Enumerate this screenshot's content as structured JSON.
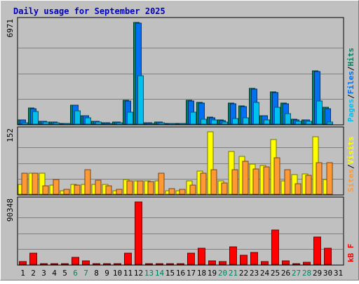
{
  "colors": {
    "frame_bg": "#C0C0C0",
    "title": "#0000C0",
    "pages": "#00C0F0",
    "files": "#0070F0",
    "hits": "#008060",
    "sites": "#FF9933",
    "visits": "#FFFF00",
    "kbytes": "#FF0000",
    "weekend": "#008060",
    "weekday": "#000000"
  },
  "chart_data": {
    "type": "bar",
    "title": "Daily usage for September 2025",
    "days": [
      "1",
      "2",
      "3",
      "4",
      "5",
      "6",
      "7",
      "8",
      "9",
      "10",
      "11",
      "12",
      "13",
      "14",
      "15",
      "16",
      "17",
      "18",
      "19",
      "20",
      "21",
      "22",
      "23",
      "24",
      "25",
      "26",
      "27",
      "28",
      "29",
      "30",
      "31"
    ],
    "weekend_days": [
      "6",
      "7",
      "13",
      "14",
      "20",
      "21",
      "27",
      "28"
    ],
    "panels": [
      {
        "id": "hits_panel",
        "max_label": "6971",
        "max": 6971,
        "legend": [
          {
            "label": "Pages",
            "color_key": "pages"
          },
          {
            "label": "Files",
            "color_key": "files"
          },
          {
            "label": "Hits",
            "color_key": "hits"
          }
        ],
        "series": [
          {
            "name": "Hits",
            "color_key": "hits",
            "values": [
              300,
              1100,
              200,
              150,
              50,
              1300,
              600,
              200,
              100,
              150,
              1650,
              6971,
              100,
              150,
              50,
              50,
              1650,
              1500,
              480,
              280,
              1450,
              1250,
              2450,
              600,
              2220,
              1450,
              330,
              300,
              3650,
              1130,
              0
            ]
          },
          {
            "name": "Files",
            "color_key": "files",
            "values": [
              280,
              1050,
              180,
              130,
              40,
              1280,
              570,
              180,
              80,
              130,
              1600,
              6900,
              80,
              130,
              30,
              30,
              1600,
              1450,
              450,
              250,
              1400,
              1200,
              2400,
              570,
              2170,
              1400,
              310,
              280,
              3600,
              1080,
              0
            ]
          },
          {
            "name": "Pages",
            "color_key": "pages",
            "values": [
              100,
              850,
              150,
              100,
              10,
              900,
              450,
              150,
              30,
              100,
              800,
              3300,
              50,
              80,
              20,
              20,
              800,
              350,
              300,
              150,
              400,
              450,
              1500,
              300,
              1150,
              700,
              200,
              200,
              1600,
              150,
              0
            ]
          }
        ]
      },
      {
        "id": "visits_panel",
        "max_label": "152",
        "max": 152,
        "legend": [
          {
            "label": "Sites",
            "color_key": "sites"
          },
          {
            "label": "Visits",
            "color_key": "visits"
          }
        ],
        "series": [
          {
            "name": "Visits",
            "color_key": "visits",
            "values": [
              24,
              52,
              52,
              22,
              8,
              24,
              24,
              24,
              24,
              8,
              36,
              32,
              32,
              32,
              8,
              8,
              32,
              56,
              152,
              32,
              104,
              92,
              74,
              70,
              134,
              32,
              48,
              50,
              140,
              36,
              0
            ]
          },
          {
            "name": "Sites",
            "color_key": "sites",
            "values": [
              52,
              52,
              20,
              36,
              12,
              22,
              60,
              34,
              20,
              12,
              32,
              32,
              30,
              52,
              14,
              12,
              22,
              52,
              60,
              28,
              60,
              80,
              62,
              66,
              88,
              60,
              26,
              46,
              76,
              76,
              0
            ]
          }
        ]
      },
      {
        "id": "kbytes_panel",
        "max_label": "90348",
        "max": 90348,
        "legend": [
          {
            "label": "kB F",
            "color_key": "kbytes"
          }
        ],
        "series": [
          {
            "name": "kB F",
            "color_key": "kbytes",
            "values": [
              4100,
              16500,
              800,
              800,
              800,
              9800,
              4700,
              1000,
              800,
              800,
              16000,
              90348,
              800,
              1200,
              800,
              800,
              16000,
              23500,
              4700,
              4500,
              25000,
              12900,
              17200,
              4000,
              50000,
              4700,
              1000,
              3100,
              39400,
              23000,
              0
            ]
          }
        ]
      }
    ]
  }
}
